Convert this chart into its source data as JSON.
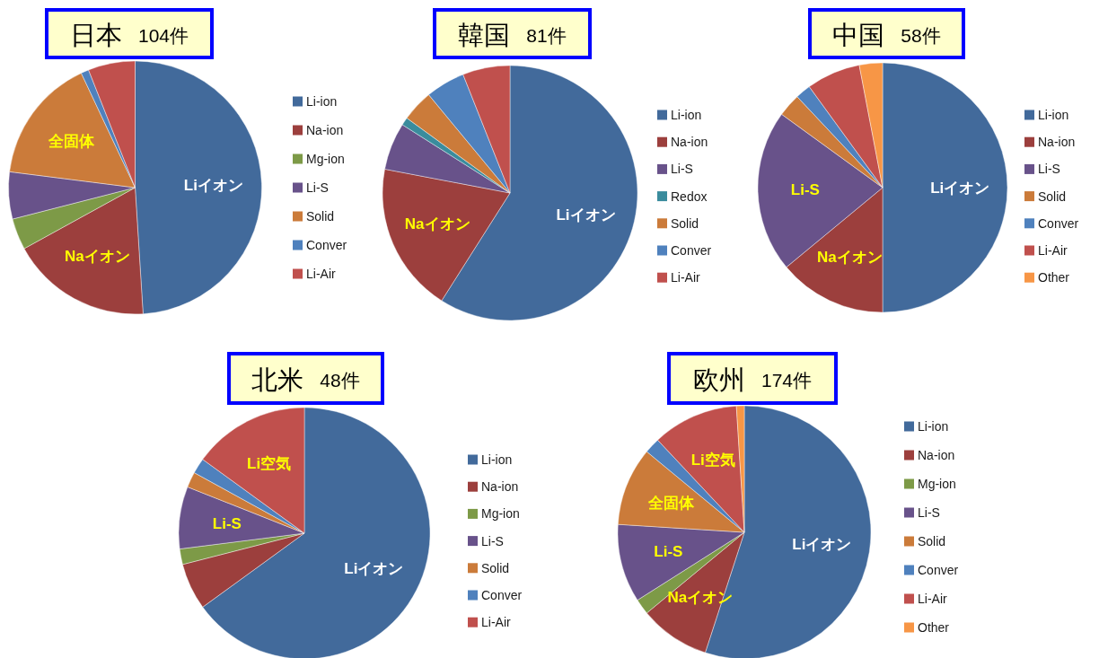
{
  "chart_data": [
    {
      "type": "pie",
      "title": "日本 104件",
      "categories": [
        "Li-ion",
        "Na-ion",
        "Mg-ion",
        "Li-S",
        "Solid",
        "Conver",
        "Li-Air"
      ],
      "values": [
        49,
        18,
        4,
        6,
        16,
        1,
        6
      ],
      "colors": [
        "#426a9b",
        "#9c3f3d",
        "#7d9a47",
        "#68528a",
        "#cb7b3a",
        "#4f81bd",
        "#c0504d"
      ],
      "value_labels": [
        "Liイオン",
        "Naイオン",
        null,
        null,
        "全固体",
        null,
        null
      ],
      "legend": "right"
    },
    {
      "type": "pie",
      "title": "韓国 81件",
      "categories": [
        "Li-ion",
        "Na-ion",
        "Li-S",
        "Redox",
        "Solid",
        "Conver",
        "Li-Air"
      ],
      "values": [
        59,
        19,
        6,
        1,
        4,
        5,
        6
      ],
      "colors": [
        "#426a9b",
        "#9c3f3d",
        "#68528a",
        "#3a8c9d",
        "#cb7b3a",
        "#4f81bd",
        "#c0504d"
      ],
      "value_labels": [
        "Liイオン",
        "Naイオン",
        null,
        null,
        null,
        null,
        null
      ],
      "legend": "right"
    },
    {
      "type": "pie",
      "title": "中国 58件",
      "categories": [
        "Li-ion",
        "Na-ion",
        "Li-S",
        "Solid",
        "Conver",
        "Li-Air",
        "Other"
      ],
      "values": [
        50,
        14,
        21,
        3,
        2,
        7,
        3
      ],
      "colors": [
        "#426a9b",
        "#9c3f3d",
        "#68528a",
        "#cb7b3a",
        "#4f81bd",
        "#c0504d",
        "#f79646"
      ],
      "value_labels": [
        "Liイオン",
        "Naイオン",
        "Li-S",
        null,
        null,
        null,
        null
      ],
      "legend": "right"
    },
    {
      "type": "pie",
      "title": "北米 48件",
      "categories": [
        "Li-ion",
        "Na-ion",
        "Mg-ion",
        "Li-S",
        "Solid",
        "Conver",
        "Li-Air"
      ],
      "values": [
        65,
        6,
        2,
        8,
        2,
        2,
        15
      ],
      "colors": [
        "#426a9b",
        "#9c3f3d",
        "#7d9a47",
        "#68528a",
        "#cb7b3a",
        "#4f81bd",
        "#c0504d"
      ],
      "value_labels": [
        "Liイオン",
        null,
        null,
        "Li-S",
        null,
        null,
        "Li空気"
      ],
      "legend": "right"
    },
    {
      "type": "pie",
      "title": "欧州 174件",
      "categories": [
        "Li-ion",
        "Na-ion",
        "Mg-ion",
        "Li-S",
        "Solid",
        "Conver",
        "Li-Air",
        "Other"
      ],
      "values": [
        55,
        9,
        2,
        10,
        10,
        2,
        11,
        1
      ],
      "colors": [
        "#426a9b",
        "#9c3f3d",
        "#7d9a47",
        "#68528a",
        "#cb7b3a",
        "#4f81bd",
        "#c0504d",
        "#f79646"
      ],
      "value_labels": [
        "Liイオン",
        "Naイオン",
        null,
        "Li-S",
        "全固体",
        null,
        "Li空気",
        null
      ],
      "legend": "right"
    }
  ]
}
